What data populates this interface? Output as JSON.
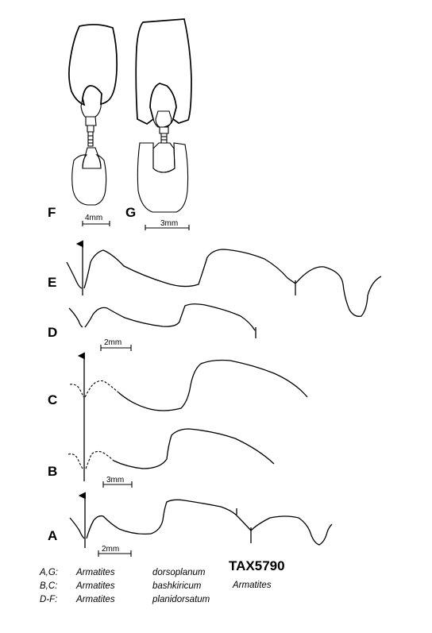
{
  "panels": {
    "F": "F",
    "G": "G",
    "E": "E",
    "D": "D",
    "C": "C",
    "B": "B",
    "A": "A"
  },
  "scales": {
    "F": "4mm",
    "G": "3mm",
    "D": "2mm",
    "B": "3mm",
    "A": "2mm"
  },
  "legend": [
    {
      "key": "A,G:",
      "genus": "Armatites",
      "species": "dorsoplanum"
    },
    {
      "key": "B,C:",
      "genus": "Armatites",
      "species": "bashkiricum"
    },
    {
      "key": "D-F:",
      "genus": "Armatites",
      "species": "planidorsatum"
    }
  ],
  "taxon_id": "TAX5790",
  "taxon_name": "Armatites"
}
